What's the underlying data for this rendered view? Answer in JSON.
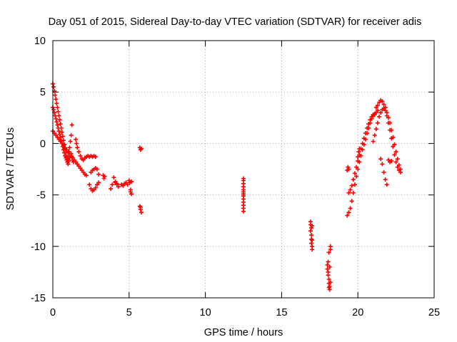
{
  "chart_data": {
    "type": "scatter",
    "title": "Day 051 of 2015, Sidereal Day-to-day VTEC variation (SDTVAR) for receiver adis",
    "xlabel": "GPS time / hours",
    "ylabel": "SDTVAR / TECUs",
    "xlim": [
      0,
      25
    ],
    "ylim": [
      -15,
      10
    ],
    "grid": true,
    "legend": "none",
    "marker": "+",
    "x_ticks": [
      0,
      5,
      10,
      15,
      20,
      25
    ],
    "x_tick_labels": [
      "0",
      "5",
      "10",
      "15",
      "20",
      "25"
    ],
    "y_ticks": [
      -15,
      -10,
      -5,
      0,
      5,
      10
    ],
    "y_tick_labels": [
      "-15",
      "-10",
      "-5",
      "0",
      "5",
      "10"
    ],
    "series": [
      {
        "name": "SDTVAR",
        "color": "#ff0000",
        "x": [
          0.0,
          0.05,
          0.1,
          0.15,
          0.2,
          0.25,
          0.3,
          0.35,
          0.4,
          0.45,
          0.5,
          0.55,
          0.6,
          0.65,
          0.7,
          0.75,
          0.8,
          0.85,
          0.9,
          0.95,
          1.0,
          1.05,
          1.1,
          1.15,
          1.2,
          1.25,
          0.0,
          0.05,
          0.1,
          0.15,
          0.2,
          0.25,
          0.3,
          0.35,
          0.4,
          0.45,
          0.5,
          0.55,
          0.6,
          0.65,
          0.7,
          0.75,
          0.8,
          0.85,
          0.9,
          0.95,
          1.0,
          1.05,
          1.1,
          0.0,
          0.1,
          0.2,
          0.3,
          0.4,
          0.5,
          0.6,
          0.7,
          0.8,
          0.9,
          1.0,
          1.1,
          1.2,
          1.3,
          1.4,
          1.5,
          1.6,
          1.7,
          1.8,
          1.9,
          2.0,
          2.1,
          2.2,
          1.2,
          1.25,
          1.3,
          1.35,
          1.5,
          1.55,
          1.6,
          1.7,
          1.8,
          1.9,
          2.0,
          2.1,
          2.2,
          2.3,
          2.4,
          2.5,
          2.6,
          2.7,
          2.8,
          2.9,
          3.0,
          2.4,
          2.5,
          2.6,
          2.7,
          2.8,
          2.9,
          3.0,
          2.5,
          2.6,
          2.7,
          2.8,
          3.3,
          3.35,
          3.4,
          3.8,
          3.9,
          4.0,
          4.1,
          4.2,
          4.3,
          4.1,
          4.2,
          4.5,
          4.6,
          4.7,
          4.8,
          4.9,
          5.0,
          5.05,
          5.1,
          5.15,
          5.1,
          5.15,
          5.7,
          5.75,
          5.8,
          5.7,
          5.75,
          5.8,
          5.75,
          12.5,
          12.5,
          12.5,
          12.5,
          12.5,
          12.5,
          12.5,
          12.5,
          12.5,
          12.5,
          12.5,
          12.5,
          12.5,
          16.9,
          16.9,
          16.9,
          16.95,
          16.95,
          16.95,
          16.95,
          17.0,
          17.0,
          17.0,
          17.0,
          18.0,
          18.0,
          18.05,
          18.05,
          18.1,
          18.1,
          18.15,
          18.15,
          18.2,
          18.2,
          18.1,
          18.15,
          18.2,
          18.05,
          18.1,
          19.3,
          19.4,
          19.5,
          19.6,
          19.7,
          19.8,
          19.9,
          20.0,
          20.1,
          20.2,
          20.3,
          20.4,
          20.5,
          20.6,
          20.7,
          20.8,
          20.9,
          21.0,
          21.1,
          19.4,
          19.5,
          19.6,
          19.7,
          19.8,
          19.9,
          20.0,
          20.1,
          20.2,
          20.3,
          20.4,
          20.5,
          20.6,
          20.7,
          20.8,
          20.9,
          21.0,
          21.1,
          21.2,
          21.3,
          21.2,
          21.3,
          21.4,
          21.5,
          21.6,
          21.7,
          21.8,
          21.9,
          22.0,
          22.1,
          22.2,
          22.3,
          22.4,
          22.5,
          22.6,
          22.7,
          22.8,
          21.0,
          21.1,
          21.2,
          21.3,
          21.4,
          21.5,
          21.6,
          21.7,
          21.8,
          21.9,
          22.0,
          22.1,
          22.2,
          22.3,
          22.4,
          22.5,
          22.6,
          22.7,
          22.8,
          21.5,
          21.6,
          21.7,
          21.8,
          21.9,
          22.0,
          22.1,
          22.2,
          19.3,
          19.35,
          19.4,
          20.0,
          20.05,
          20.1
        ],
        "y": [
          5.8,
          5.5,
          5.1,
          4.7,
          4.3,
          3.9,
          3.5,
          3.1,
          2.7,
          2.3,
          1.9,
          1.5,
          1.1,
          0.7,
          0.3,
          -0.1,
          -0.5,
          -0.9,
          -1.3,
          -1.5,
          -1.2,
          -0.8,
          -0.4,
          0.2,
          0.8,
          1.8,
          3.5,
          3.3,
          3.0,
          2.7,
          2.4,
          2.1,
          1.8,
          1.5,
          1.2,
          0.9,
          0.6,
          0.3,
          0.0,
          -0.3,
          -0.6,
          -0.9,
          -1.2,
          -1.4,
          -1.6,
          -1.8,
          -2.0,
          -1.7,
          -1.4,
          1.2,
          1.0,
          0.8,
          0.6,
          0.4,
          0.2,
          0.0,
          -0.2,
          -0.4,
          -0.6,
          -0.8,
          -1.0,
          -1.2,
          -1.4,
          -1.6,
          -1.8,
          -2.0,
          -2.2,
          -2.4,
          -2.6,
          -2.8,
          -3.0,
          -3.1,
          -1.0,
          -1.3,
          -1.6,
          -1.8,
          0.4,
          0.0,
          -0.4,
          -0.8,
          -1.2,
          -1.5,
          -1.6,
          -1.4,
          -1.3,
          -1.2,
          -1.3,
          -1.2,
          -1.3,
          -1.2,
          -1.3,
          -2.5,
          -3.0,
          -4.0,
          -4.4,
          -4.6,
          -4.5,
          -4.3,
          -4.0,
          -3.8,
          -2.8,
          -2.6,
          -2.5,
          -2.4,
          -3.1,
          -3.4,
          -3.2,
          -4.4,
          -4.0,
          -3.3,
          -3.7,
          -4.0,
          -4.2,
          -3.8,
          -3.9,
          -4.0,
          -4.1,
          -3.9,
          -3.8,
          -4.0,
          -3.6,
          -3.8,
          -4.5,
          -4.9,
          -4.7,
          -3.7,
          -0.4,
          -0.6,
          -0.5,
          -6.1,
          -6.4,
          -6.7,
          -6.2,
          -3.4,
          -3.6,
          -3.9,
          -4.2,
          -4.5,
          -4.7,
          -4.9,
          -5.1,
          -5.4,
          -5.7,
          -6.0,
          -6.3,
          -6.6,
          -7.6,
          -7.9,
          -8.5,
          -8.2,
          -8.9,
          -9.3,
          -9.7,
          -9.4,
          -10.0,
          -10.3,
          -8.0,
          -11.8,
          -12.2,
          -12.5,
          -12.8,
          -13.2,
          -13.6,
          -13.9,
          -14.2,
          -10.0,
          -10.3,
          -10.6,
          -12.0,
          -13.5,
          -11.5,
          -14.0,
          -7.0,
          -6.7,
          -6.3,
          -5.6,
          -4.8,
          -4.0,
          -3.2,
          -2.5,
          -1.8,
          -1.2,
          -0.6,
          -0.1,
          0.4,
          1.0,
          1.5,
          2.0,
          2.4,
          2.7,
          2.8,
          -4.8,
          -4.5,
          -4.1,
          -3.5,
          -2.9,
          -2.3,
          -1.7,
          -1.1,
          -0.5,
          0.0,
          0.5,
          1.0,
          1.5,
          1.9,
          2.3,
          2.6,
          2.8,
          2.9,
          3.0,
          3.2,
          3.5,
          3.7,
          4.0,
          4.2,
          4.1,
          3.8,
          3.5,
          3.0,
          2.5,
          2.0,
          1.3,
          0.6,
          -0.1,
          -0.8,
          -1.5,
          -2.1,
          -2.5,
          0.2,
          0.8,
          1.4,
          2.0,
          2.6,
          3.0,
          3.3,
          3.4,
          3.2,
          2.7,
          2.0,
          1.3,
          0.5,
          -0.3,
          -1.1,
          -1.8,
          -2.3,
          -2.6,
          -2.8,
          -1.5,
          -2.0,
          -2.8,
          -3.5,
          -4.0,
          -1.6,
          -1.8,
          -1.7,
          -2.6,
          -2.3,
          -2.5,
          -1.3,
          -0.8,
          -0.5
        ]
      }
    ]
  }
}
